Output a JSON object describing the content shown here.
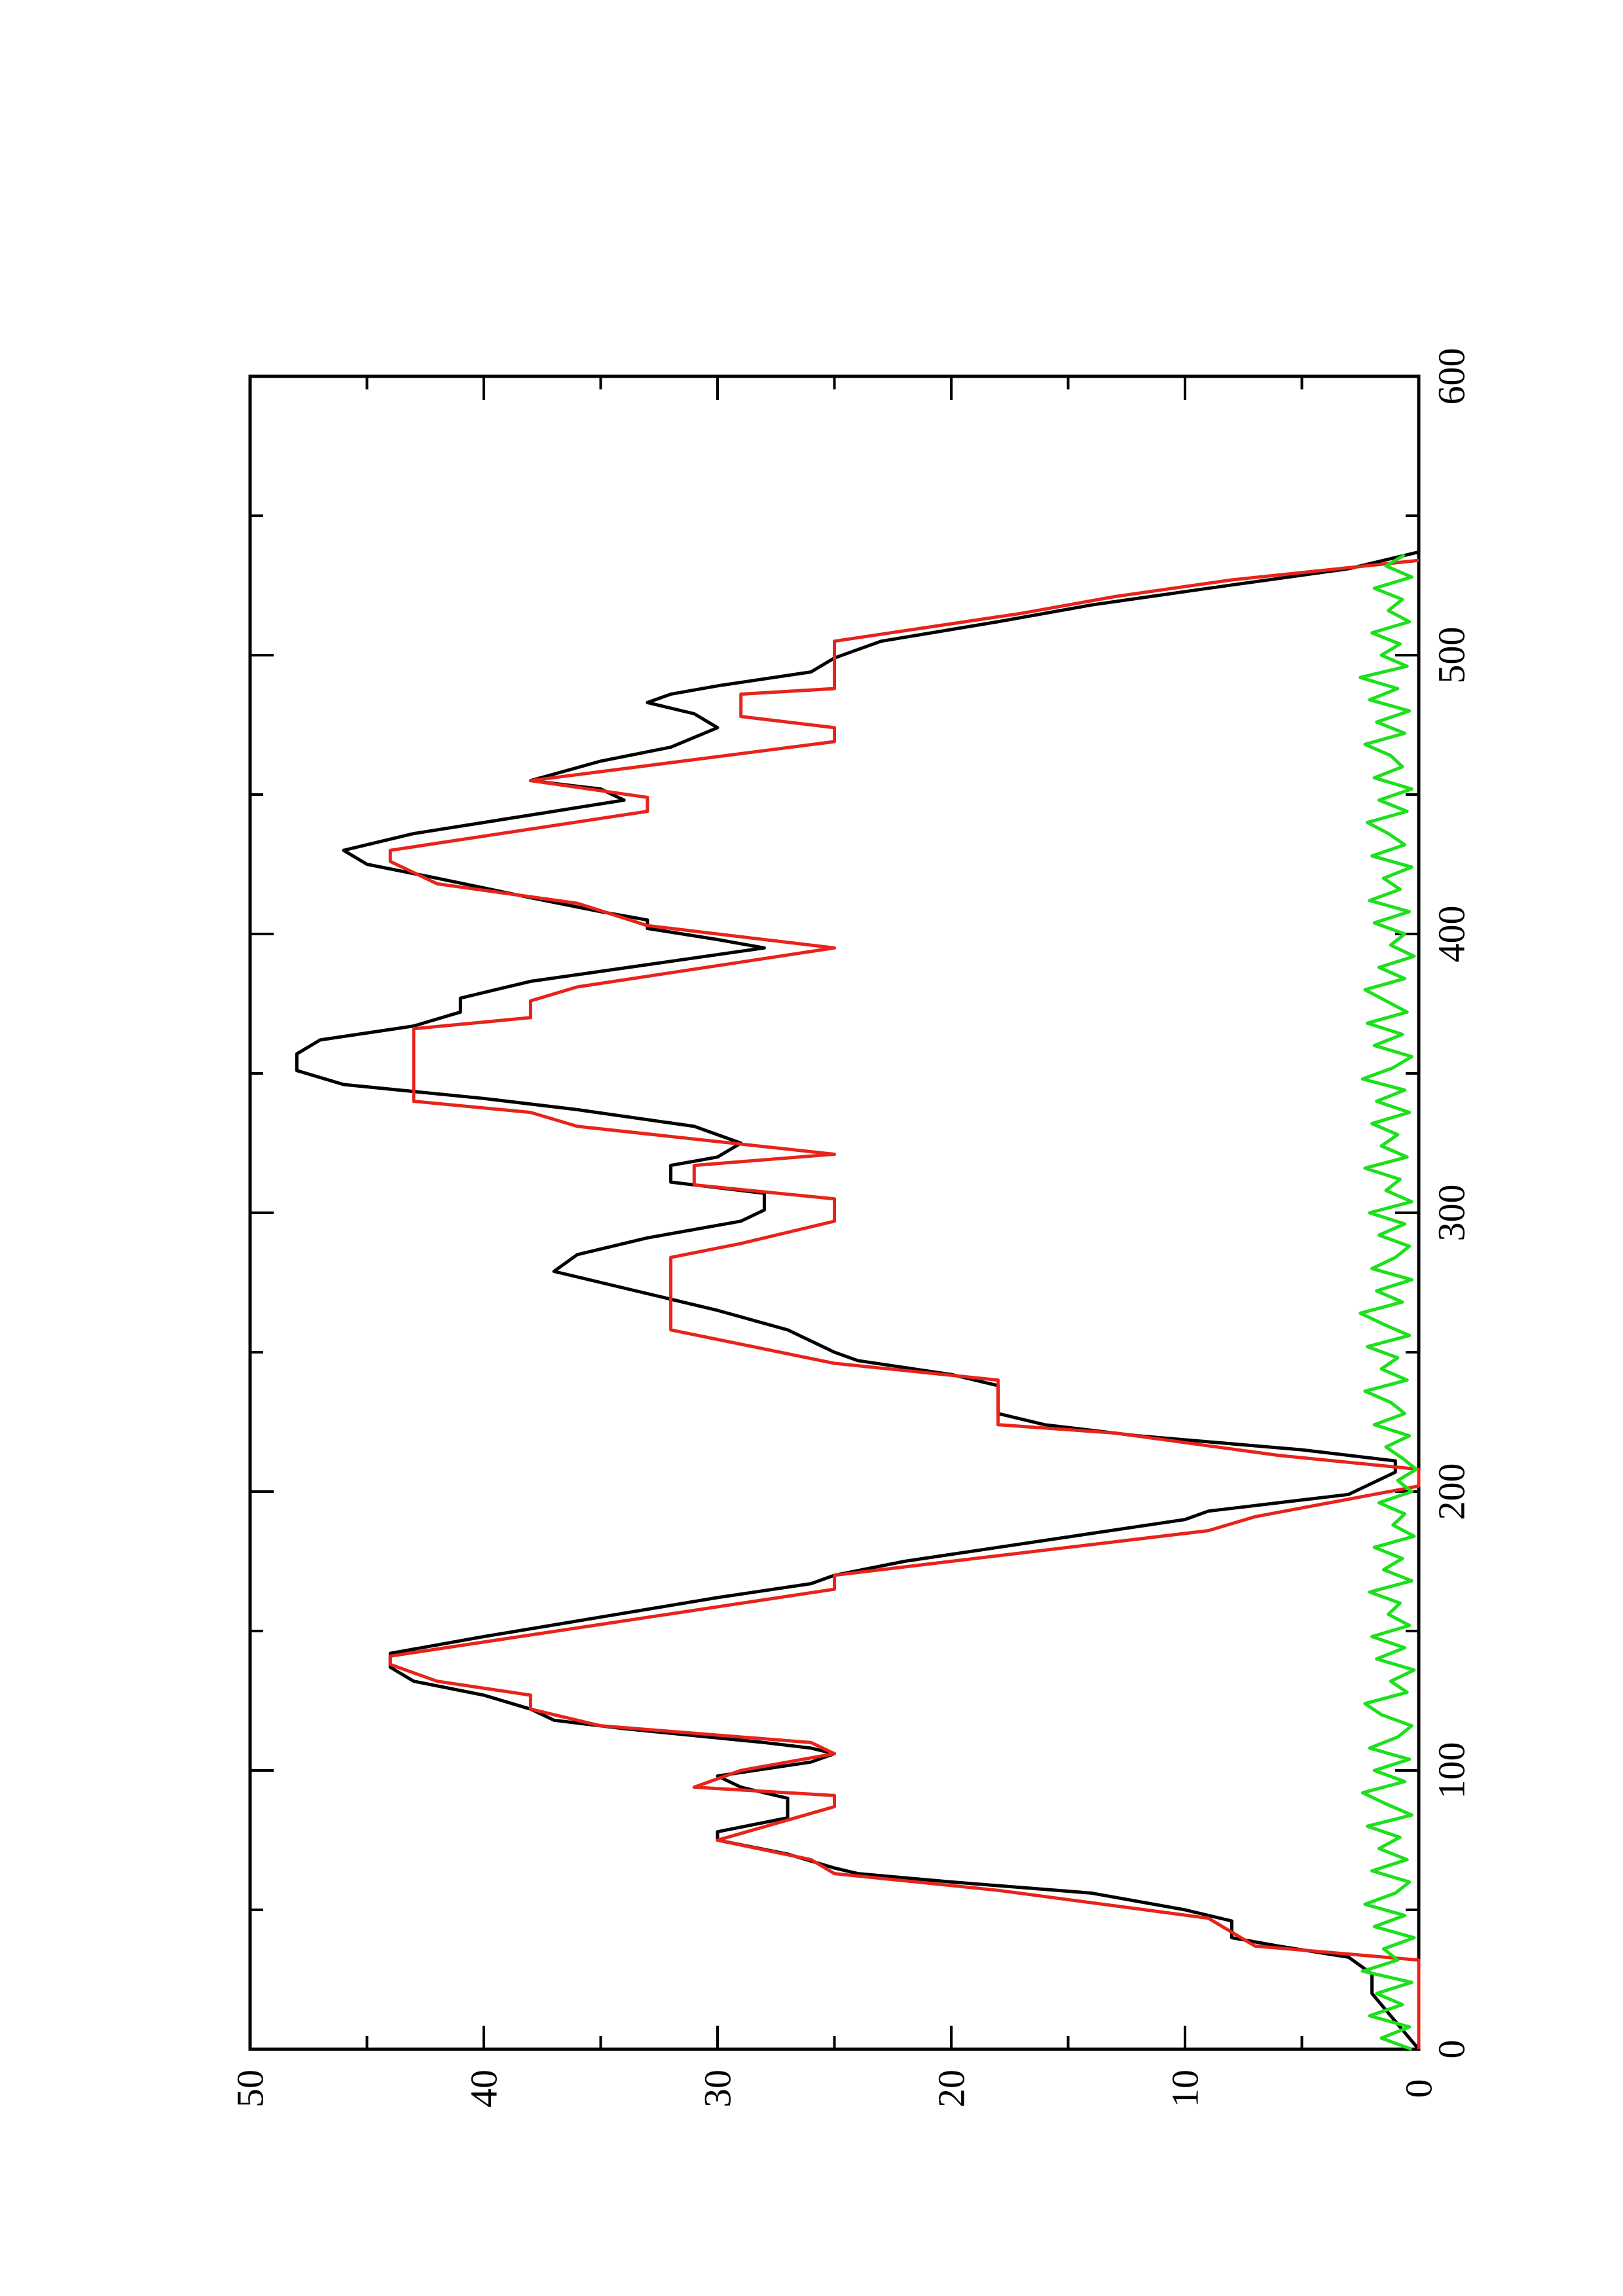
{
  "chart_data": {
    "type": "line",
    "orientation": "rotated-90-ccw",
    "title": "",
    "xlabel": "",
    "ylabel": "",
    "xlim": [
      0,
      600
    ],
    "ylim": [
      0,
      50
    ],
    "x_ticks": [
      "0",
      "100",
      "200",
      "300",
      "400",
      "500",
      "600"
    ],
    "y_ticks": [
      "0",
      "10",
      "20",
      "30",
      "40",
      "50"
    ],
    "grid": false,
    "legend": "none",
    "series": [
      {
        "color": "#000000",
        "points": [
          [
            0,
            0
          ],
          [
            10,
            1
          ],
          [
            20,
            2
          ],
          [
            27,
            2
          ],
          [
            33,
            3
          ],
          [
            37,
            6
          ],
          [
            40,
            8
          ],
          [
            46,
            8
          ],
          [
            50,
            10
          ],
          [
            56,
            14
          ],
          [
            60,
            20
          ],
          [
            63,
            24
          ],
          [
            65,
            25
          ],
          [
            70,
            27
          ],
          [
            75,
            30
          ],
          [
            78,
            30
          ],
          [
            83,
            27
          ],
          [
            90,
            27
          ],
          [
            94,
            29
          ],
          [
            98,
            30
          ],
          [
            103,
            26
          ],
          [
            106,
            25
          ],
          [
            108,
            26
          ],
          [
            110,
            28
          ],
          [
            115,
            34
          ],
          [
            118,
            37
          ],
          [
            122,
            38
          ],
          [
            127,
            40
          ],
          [
            132,
            43
          ],
          [
            137,
            44
          ],
          [
            142,
            44
          ],
          [
            148,
            40
          ],
          [
            155,
            35
          ],
          [
            162,
            30
          ],
          [
            167,
            26
          ],
          [
            170,
            25
          ],
          [
            175,
            22
          ],
          [
            180,
            18
          ],
          [
            185,
            14
          ],
          [
            190,
            10
          ],
          [
            193,
            9
          ],
          [
            196,
            6
          ],
          [
            199,
            3
          ],
          [
            203,
            2
          ],
          [
            207,
            1
          ],
          [
            211,
            1
          ],
          [
            215,
            5
          ],
          [
            220,
            12
          ],
          [
            224,
            16
          ],
          [
            228,
            18
          ],
          [
            238,
            18
          ],
          [
            242,
            20
          ],
          [
            247,
            24
          ],
          [
            250,
            25
          ],
          [
            258,
            27
          ],
          [
            265,
            30
          ],
          [
            273,
            34
          ],
          [
            279,
            37
          ],
          [
            285,
            36
          ],
          [
            291,
            33
          ],
          [
            297,
            29
          ],
          [
            301,
            28
          ],
          [
            307,
            28
          ],
          [
            309,
            30
          ],
          [
            311,
            32
          ],
          [
            317,
            32
          ],
          [
            320,
            30
          ],
          [
            325,
            29
          ],
          [
            331,
            31
          ],
          [
            337,
            36
          ],
          [
            341,
            40
          ],
          [
            346,
            46
          ],
          [
            351,
            48
          ],
          [
            357,
            48
          ],
          [
            362,
            47
          ],
          [
            367,
            43
          ],
          [
            372,
            41
          ],
          [
            377,
            41
          ],
          [
            383,
            38
          ],
          [
            389,
            33
          ],
          [
            395,
            28
          ],
          [
            398,
            30
          ],
          [
            402,
            33
          ],
          [
            405,
            33
          ],
          [
            408,
            35
          ],
          [
            413,
            38
          ],
          [
            420,
            42
          ],
          [
            425,
            45
          ],
          [
            430,
            46
          ],
          [
            436,
            43
          ],
          [
            440,
            40
          ],
          [
            444,
            37
          ],
          [
            448,
            34
          ],
          [
            452,
            35
          ],
          [
            455,
            38
          ],
          [
            462,
            35
          ],
          [
            467,
            32
          ],
          [
            474,
            30
          ],
          [
            479,
            31
          ],
          [
            483,
            33
          ],
          [
            486,
            32
          ],
          [
            489,
            30
          ],
          [
            494,
            26
          ],
          [
            499,
            25
          ],
          [
            505,
            23
          ],
          [
            512,
            18
          ],
          [
            518,
            14
          ],
          [
            524,
            9
          ],
          [
            531,
            3
          ],
          [
            537,
            0
          ]
        ]
      },
      {
        "color": "#e8231b",
        "points": [
          [
            0,
            0
          ],
          [
            32,
            0
          ],
          [
            37,
            7
          ],
          [
            47,
            9
          ],
          [
            57,
            18
          ],
          [
            63,
            25
          ],
          [
            68,
            26
          ],
          [
            75,
            30
          ],
          [
            87,
            25
          ],
          [
            91,
            25
          ],
          [
            94,
            31
          ],
          [
            100,
            29
          ],
          [
            103,
            27
          ],
          [
            106,
            25
          ],
          [
            110,
            26
          ],
          [
            116,
            35
          ],
          [
            122,
            38
          ],
          [
            127,
            38
          ],
          [
            132,
            42
          ],
          [
            138,
            44
          ],
          [
            141,
            44
          ],
          [
            165,
            25
          ],
          [
            170,
            25
          ],
          [
            186,
            9
          ],
          [
            191,
            7
          ],
          [
            202,
            0
          ],
          [
            208,
            0
          ],
          [
            213,
            6
          ],
          [
            221,
            13
          ],
          [
            224,
            18
          ],
          [
            240,
            18
          ],
          [
            246,
            25
          ],
          [
            258,
            32
          ],
          [
            284,
            32
          ],
          [
            289,
            29
          ],
          [
            297,
            25
          ],
          [
            305,
            25
          ],
          [
            310,
            31
          ],
          [
            317,
            31
          ],
          [
            321,
            25
          ],
          [
            331,
            36
          ],
          [
            336,
            38
          ],
          [
            340,
            43
          ],
          [
            366,
            43
          ],
          [
            370,
            38
          ],
          [
            376,
            38
          ],
          [
            381,
            36
          ],
          [
            395,
            25
          ],
          [
            403,
            33
          ],
          [
            411,
            36
          ],
          [
            418,
            42
          ],
          [
            426,
            44
          ],
          [
            430,
            44
          ],
          [
            444,
            33
          ],
          [
            449,
            33
          ],
          [
            455,
            38
          ],
          [
            469,
            25
          ],
          [
            474,
            25
          ],
          [
            478,
            29
          ],
          [
            486,
            29
          ],
          [
            488,
            25
          ],
          [
            505,
            25
          ],
          [
            515,
            17
          ],
          [
            521,
            13
          ],
          [
            527,
            8
          ],
          [
            534,
            0
          ]
        ]
      },
      {
        "color": "#1be01b",
        "amplitude_max": 2.5,
        "note_points": "noise near zero across 0–537",
        "points": [
          [
            0,
            0.3
          ],
          [
            4,
            1.6
          ],
          [
            8,
            0.4
          ],
          [
            12,
            2.1
          ],
          [
            16,
            0.7
          ],
          [
            20,
            1.8
          ],
          [
            24,
            0.3
          ],
          [
            28,
            2.4
          ],
          [
            32,
            0.9
          ],
          [
            36,
            1.5
          ],
          [
            40,
            0.2
          ],
          [
            44,
            1.9
          ],
          [
            48,
            0.6
          ],
          [
            52,
            2.3
          ],
          [
            56,
            1.0
          ],
          [
            60,
            0.4
          ],
          [
            64,
            2.0
          ],
          [
            68,
            0.5
          ],
          [
            72,
            1.7
          ],
          [
            76,
            0.8
          ],
          [
            80,
            2.2
          ],
          [
            84,
            0.3
          ],
          [
            88,
            1.4
          ],
          [
            92,
            2.4
          ],
          [
            96,
            0.6
          ],
          [
            100,
            1.9
          ],
          [
            104,
            0.4
          ],
          [
            108,
            2.1
          ],
          [
            112,
            0.9
          ],
          [
            116,
            0.3
          ],
          [
            120,
            1.6
          ],
          [
            124,
            2.3
          ],
          [
            128,
            0.5
          ],
          [
            132,
            1.2
          ],
          [
            136,
            0.2
          ],
          [
            140,
            1.8
          ],
          [
            144,
            0.6
          ],
          [
            148,
            2.0
          ],
          [
            152,
            0.4
          ],
          [
            156,
            1.3
          ],
          [
            160,
            0.8
          ],
          [
            164,
            2.1
          ],
          [
            168,
            0.3
          ],
          [
            172,
            1.5
          ],
          [
            176,
            0.7
          ],
          [
            180,
            1.9
          ],
          [
            184,
            0.2
          ],
          [
            188,
            1.1
          ],
          [
            192,
            0.6
          ],
          [
            196,
            1.7
          ],
          [
            200,
            0.3
          ],
          [
            204,
            0.9
          ],
          [
            208,
            0.1
          ],
          [
            212,
            0.7
          ],
          [
            216,
            1.4
          ],
          [
            220,
            0.4
          ],
          [
            224,
            1.9
          ],
          [
            228,
            0.6
          ],
          [
            232,
            1.2
          ],
          [
            236,
            2.3
          ],
          [
            240,
            0.5
          ],
          [
            244,
            1.6
          ],
          [
            248,
            0.9
          ],
          [
            252,
            2.2
          ],
          [
            256,
            0.4
          ],
          [
            260,
            1.5
          ],
          [
            264,
            2.5
          ],
          [
            268,
            0.7
          ],
          [
            272,
            1.8
          ],
          [
            276,
            0.3
          ],
          [
            280,
            2.0
          ],
          [
            284,
            1.0
          ],
          [
            288,
            0.4
          ],
          [
            292,
            1.7
          ],
          [
            296,
            0.6
          ],
          [
            300,
            2.1
          ],
          [
            304,
            0.3
          ],
          [
            308,
            1.4
          ],
          [
            312,
            0.8
          ],
          [
            316,
            2.3
          ],
          [
            320,
            0.5
          ],
          [
            324,
            1.6
          ],
          [
            328,
            0.9
          ],
          [
            332,
            2.0
          ],
          [
            336,
            0.4
          ],
          [
            340,
            1.8
          ],
          [
            344,
            0.6
          ],
          [
            348,
            2.4
          ],
          [
            352,
            1.1
          ],
          [
            356,
            0.3
          ],
          [
            360,
            1.9
          ],
          [
            364,
            0.7
          ],
          [
            368,
            2.2
          ],
          [
            372,
            0.5
          ],
          [
            376,
            1.4
          ],
          [
            380,
            2.3
          ],
          [
            384,
            0.6
          ],
          [
            388,
            1.7
          ],
          [
            392,
            0.2
          ],
          [
            396,
            1.2
          ],
          [
            400,
            0.6
          ],
          [
            404,
            1.9
          ],
          [
            408,
            0.4
          ],
          [
            412,
            2.1
          ],
          [
            416,
            0.8
          ],
          [
            420,
            1.5
          ],
          [
            424,
            0.3
          ],
          [
            428,
            2.0
          ],
          [
            432,
            0.6
          ],
          [
            436,
            1.3
          ],
          [
            440,
            2.2
          ],
          [
            444,
            0.5
          ],
          [
            448,
            1.7
          ],
          [
            452,
            0.3
          ],
          [
            456,
            1.9
          ],
          [
            460,
            0.7
          ],
          [
            464,
            1.2
          ],
          [
            468,
            2.3
          ],
          [
            472,
            0.6
          ],
          [
            476,
            1.8
          ],
          [
            480,
            0.4
          ],
          [
            484,
            2.1
          ],
          [
            488,
            0.9
          ],
          [
            492,
            2.5
          ],
          [
            496,
            0.5
          ],
          [
            500,
            1.6
          ],
          [
            504,
            0.8
          ],
          [
            508,
            2.0
          ],
          [
            512,
            0.4
          ],
          [
            516,
            1.3
          ],
          [
            520,
            0.7
          ],
          [
            524,
            1.9
          ],
          [
            528,
            0.3
          ],
          [
            532,
            1.4
          ],
          [
            536,
            0.6
          ]
        ]
      }
    ]
  }
}
